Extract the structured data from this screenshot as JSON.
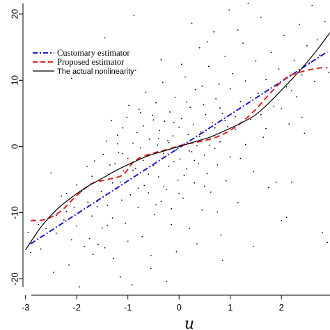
{
  "chart_data": {
    "type": "scatter",
    "xlabel": "u",
    "ylabel": "",
    "xlim": [
      -3.05,
      2.95
    ],
    "ylim": [
      -21.3,
      21.8
    ],
    "x_ticks": [
      -3,
      -2,
      -1,
      0,
      1,
      2
    ],
    "y_ticks": [
      -20,
      -10,
      0,
      10,
      20
    ],
    "grid": false,
    "legend": {
      "placement": "top-left",
      "entries": [
        {
          "label": "Customary estimator",
          "color": "#1a1acc",
          "dash": "dashdot"
        },
        {
          "label": "Proposed estimator",
          "color": "#dd2222",
          "dash": "dashed"
        },
        {
          "label": "The actual nonlinearity",
          "color": "#000000",
          "dash": "solid"
        }
      ]
    },
    "series": [
      {
        "style": "dashdot",
        "color": "#1a1acc",
        "x": [
          -2.9,
          2.9
        ],
        "y": [
          -14.7,
          14.3
        ]
      },
      {
        "style": "dashed",
        "color": "#dd2222",
        "x": [
          -2.9,
          -2.6,
          -2.3,
          -2.0,
          -1.7,
          -1.4,
          -1.1,
          -0.9,
          -0.7,
          -0.5,
          -0.2,
          0.0,
          0.3,
          0.6,
          0.9,
          1.2,
          1.5,
          1.8,
          2.1,
          2.4,
          2.7,
          2.9
        ],
        "y": [
          -11.2,
          -11.0,
          -9.7,
          -7.4,
          -5.6,
          -5.0,
          -4.3,
          -2.4,
          -1.5,
          -1.0,
          -0.4,
          0.1,
          0.6,
          1.1,
          2.0,
          3.5,
          5.6,
          8.2,
          10.4,
          11.3,
          11.8,
          11.9
        ]
      },
      {
        "style": "solid",
        "color": "#000000",
        "x": [
          -3.0,
          -2.7,
          -2.4,
          -2.1,
          -1.8,
          -1.5,
          -1.2,
          -0.9,
          -0.6,
          -0.3,
          0.0,
          0.3,
          0.6,
          0.9,
          1.2,
          1.5,
          1.8,
          2.1,
          2.4,
          2.7,
          2.95
        ],
        "y": [
          -15.6,
          -12.2,
          -9.6,
          -7.7,
          -6.1,
          -4.8,
          -3.5,
          -2.4,
          -1.4,
          -0.7,
          0.0,
          0.7,
          1.4,
          2.4,
          3.5,
          4.8,
          6.9,
          9.3,
          11.8,
          14.6,
          17.2
        ]
      }
    ],
    "points": [
      [
        -2.95,
        -13.0
      ],
      [
        -2.9,
        -16.0
      ],
      [
        -2.85,
        -11.1
      ],
      [
        -2.75,
        -11.8
      ],
      [
        -2.7,
        -15.5
      ],
      [
        -2.6,
        -12.4
      ],
      [
        -2.5,
        -4.0
      ],
      [
        -2.45,
        -19.0
      ],
      [
        -2.4,
        -13.1
      ],
      [
        -2.3,
        -7.5
      ],
      [
        -2.25,
        -11.1
      ],
      [
        -2.2,
        -9.8
      ],
      [
        -2.15,
        -17.9
      ],
      [
        -2.1,
        -14.1
      ],
      [
        -2.05,
        -9.2
      ],
      [
        -2.0,
        -12.0
      ],
      [
        -1.95,
        -21.2
      ],
      [
        -1.9,
        -6.8
      ],
      [
        -1.85,
        -15.1
      ],
      [
        -1.8,
        -3.0
      ],
      [
        -1.78,
        -8.4
      ],
      [
        -1.75,
        -13.9
      ],
      [
        -1.7,
        -10.5
      ],
      [
        -1.68,
        -16.3
      ],
      [
        -1.65,
        -2.2
      ],
      [
        -1.6,
        -9.1
      ],
      [
        -1.58,
        -14.8
      ],
      [
        -1.55,
        -5.1
      ],
      [
        -1.52,
        -6.8
      ],
      [
        -1.5,
        -12.3
      ],
      [
        -1.48,
        -1.2
      ],
      [
        -1.45,
        -15.3
      ],
      [
        -1.42,
        0.8
      ],
      [
        -1.4,
        -8.9
      ],
      [
        -1.38,
        -4.2
      ],
      [
        -1.35,
        -2.8
      ],
      [
        -1.32,
        3.9
      ],
      [
        -1.3,
        -10.8
      ],
      [
        -1.28,
        -16.9
      ],
      [
        -1.25,
        -2.6
      ],
      [
        -1.22,
        -6.4
      ],
      [
        -1.2,
        1.7
      ],
      [
        -1.18,
        -0.9
      ],
      [
        -1.15,
        -5.4
      ],
      [
        -1.12,
        -8.1
      ],
      [
        -1.1,
        2.8
      ],
      [
        -1.08,
        -3.7
      ],
      [
        -1.05,
        -11.6
      ],
      [
        -1.02,
        4.4
      ],
      [
        -1.0,
        -1.8
      ],
      [
        -0.98,
        6.2
      ],
      [
        -0.95,
        -7.3
      ],
      [
        -0.92,
        -20.9
      ],
      [
        -0.9,
        0.5
      ],
      [
        -0.88,
        19.8
      ],
      [
        -0.85,
        -3.3
      ],
      [
        -0.82,
        2.1
      ],
      [
        -0.8,
        -9.2
      ],
      [
        -0.78,
        5.6
      ],
      [
        -0.75,
        -0.2
      ],
      [
        -0.72,
        -13.6
      ],
      [
        -0.7,
        3.1
      ],
      [
        -0.68,
        -5.9
      ],
      [
        -0.65,
        8.2
      ],
      [
        -0.62,
        -1.4
      ],
      [
        -0.6,
        -7.0
      ],
      [
        -0.58,
        1.1
      ],
      [
        -0.55,
        -16.5
      ],
      [
        -0.52,
        4.7
      ],
      [
        -0.5,
        -2.9
      ],
      [
        -0.48,
        -10.3
      ],
      [
        -0.45,
        6.6
      ],
      [
        -0.42,
        0.2
      ],
      [
        -0.4,
        -4.6
      ],
      [
        -0.38,
        2.4
      ],
      [
        -0.35,
        -8.3
      ],
      [
        -0.32,
        9.7
      ],
      [
        -0.3,
        -1.1
      ],
      [
        -0.28,
        3.8
      ],
      [
        -0.25,
        -6.5
      ],
      [
        -0.22,
        0.9
      ],
      [
        -0.2,
        -3.0
      ],
      [
        -0.18,
        5.2
      ],
      [
        -0.15,
        -11.8
      ],
      [
        -0.12,
        1.6
      ],
      [
        -0.1,
        -2.3
      ],
      [
        -0.08,
        7.4
      ],
      [
        -0.05,
        -0.5
      ],
      [
        -0.02,
        -5.1
      ],
      [
        0.0,
        2.9
      ],
      [
        0.02,
        -1.9
      ],
      [
        0.05,
        4.2
      ],
      [
        0.08,
        -7.8
      ],
      [
        0.1,
        0.4
      ],
      [
        0.12,
        10.5
      ],
      [
        0.15,
        -3.4
      ],
      [
        0.18,
        1.8
      ],
      [
        0.2,
        -12.4
      ],
      [
        0.22,
        5.9
      ],
      [
        0.25,
        -0.8
      ],
      [
        0.28,
        3.3
      ],
      [
        0.3,
        -5.5
      ],
      [
        0.32,
        8.6
      ],
      [
        0.35,
        0.1
      ],
      [
        0.38,
        -2.6
      ],
      [
        0.4,
        14.9
      ],
      [
        0.42,
        2.2
      ],
      [
        0.45,
        -9.6
      ],
      [
        0.48,
        6.3
      ],
      [
        0.5,
        -1.3
      ],
      [
        0.52,
        4.8
      ],
      [
        0.55,
        -4.1
      ],
      [
        0.58,
        12.1
      ],
      [
        0.6,
        1.0
      ],
      [
        0.62,
        -6.9
      ],
      [
        0.65,
        3.6
      ],
      [
        0.68,
        17.3
      ],
      [
        0.7,
        -0.3
      ],
      [
        0.72,
        7.2
      ],
      [
        0.75,
        -2.8
      ],
      [
        0.78,
        9.4
      ],
      [
        0.8,
        0.7
      ],
      [
        0.82,
        -13.4
      ],
      [
        0.85,
        5.0
      ],
      [
        0.88,
        1.9
      ],
      [
        0.9,
        13.6
      ],
      [
        0.92,
        -5.2
      ],
      [
        0.95,
        3.0
      ],
      [
        0.98,
        20.6
      ],
      [
        1.0,
        -1.6
      ],
      [
        1.05,
        11.0
      ],
      [
        1.1,
        2.6
      ],
      [
        1.15,
        -8.5
      ],
      [
        1.2,
        6.8
      ],
      [
        1.25,
        15.6
      ],
      [
        1.3,
        0.3
      ],
      [
        1.35,
        21.6
      ],
      [
        1.4,
        4.1
      ],
      [
        1.45,
        -3.8
      ],
      [
        1.5,
        12.9
      ],
      [
        1.55,
        8.0
      ],
      [
        1.6,
        19.5
      ],
      [
        1.65,
        1.4
      ],
      [
        1.7,
        10.1
      ],
      [
        1.75,
        -6.2
      ],
      [
        1.8,
        14.2
      ],
      [
        1.85,
        6.1
      ],
      [
        1.9,
        -5.4
      ],
      [
        1.95,
        11.7
      ],
      [
        2.0,
        -11.2
      ],
      [
        2.05,
        16.8
      ],
      [
        2.1,
        9.0
      ],
      [
        2.15,
        3.4
      ],
      [
        2.2,
        -5.4
      ],
      [
        2.25,
        13.0
      ],
      [
        2.3,
        7.5
      ],
      [
        2.35,
        18.4
      ],
      [
        2.4,
        10.8
      ],
      [
        2.45,
        2.0
      ],
      [
        2.5,
        15.2
      ],
      [
        2.55,
        12.6
      ],
      [
        2.6,
        21.3
      ],
      [
        2.65,
        9.8
      ],
      [
        2.7,
        16.1
      ],
      [
        2.75,
        13.8
      ],
      [
        2.8,
        -13.0
      ],
      [
        2.85,
        18.9
      ],
      [
        2.9,
        -14.5
      ],
      [
        2.92,
        11.2
      ],
      [
        -0.3,
        -6.1
      ],
      [
        -0.6,
        -4.2
      ],
      [
        0.6,
        0.2
      ],
      [
        0.4,
        1.5
      ],
      [
        -0.4,
        1.2
      ],
      [
        0.2,
        -0.7
      ],
      [
        -0.2,
        0.6
      ],
      [
        0.7,
        2.8
      ],
      [
        -0.7,
        -2.1
      ],
      [
        0.9,
        3.9
      ],
      [
        -0.9,
        -3.6
      ],
      [
        1.1,
        4.5
      ],
      [
        -1.1,
        -1.1
      ],
      [
        0.3,
        -2.1
      ],
      [
        -0.1,
        3.6
      ],
      [
        0.1,
        -4.4
      ],
      [
        -0.5,
        4.0
      ],
      [
        0.5,
        -6.0
      ],
      [
        0.8,
        5.8
      ],
      [
        -0.8,
        -6.3
      ],
      [
        1.2,
        -1.8
      ],
      [
        -1.2,
        0.4
      ],
      [
        1.4,
        7.4
      ],
      [
        -1.4,
        -11.9
      ],
      [
        1.6,
        4.8
      ],
      [
        -1.6,
        -8.3
      ],
      [
        0.0,
        -7.1
      ],
      [
        0.15,
        6.7
      ],
      [
        -0.15,
        -9.4
      ],
      [
        0.45,
        9.1
      ],
      [
        -0.45,
        -8.8
      ],
      [
        0.75,
        -9.9
      ],
      [
        -0.75,
        5.1
      ],
      [
        1.0,
        8.7
      ],
      [
        -1.0,
        -14.3
      ],
      [
        1.3,
        9.9
      ],
      [
        -1.3,
        -5.5
      ],
      [
        1.7,
        2.7
      ],
      [
        -1.7,
        -4.5
      ],
      [
        2.0,
        5.7
      ],
      [
        -2.0,
        -5.8
      ],
      [
        2.2,
        8.4
      ],
      [
        -2.2,
        -7.1
      ],
      [
        2.4,
        4.4
      ],
      [
        -2.4,
        -10.4
      ],
      [
        0.55,
        15.8
      ],
      [
        -0.55,
        -18.4
      ],
      [
        0.05,
        12.4
      ],
      [
        -0.05,
        -15.9
      ],
      [
        0.35,
        -14.7
      ],
      [
        -0.35,
        13.1
      ],
      [
        1.15,
        17.6
      ],
      [
        -1.15,
        -19.7
      ],
      [
        0.85,
        -17.2
      ],
      [
        -0.85,
        11.5
      ],
      [
        1.45,
        -15.1
      ],
      [
        -1.45,
        16.4
      ],
      [
        2.1,
        -10.7
      ],
      [
        -2.1,
        10.3
      ],
      [
        0.25,
        18.6
      ],
      [
        -0.25,
        -20.4
      ]
    ]
  }
}
